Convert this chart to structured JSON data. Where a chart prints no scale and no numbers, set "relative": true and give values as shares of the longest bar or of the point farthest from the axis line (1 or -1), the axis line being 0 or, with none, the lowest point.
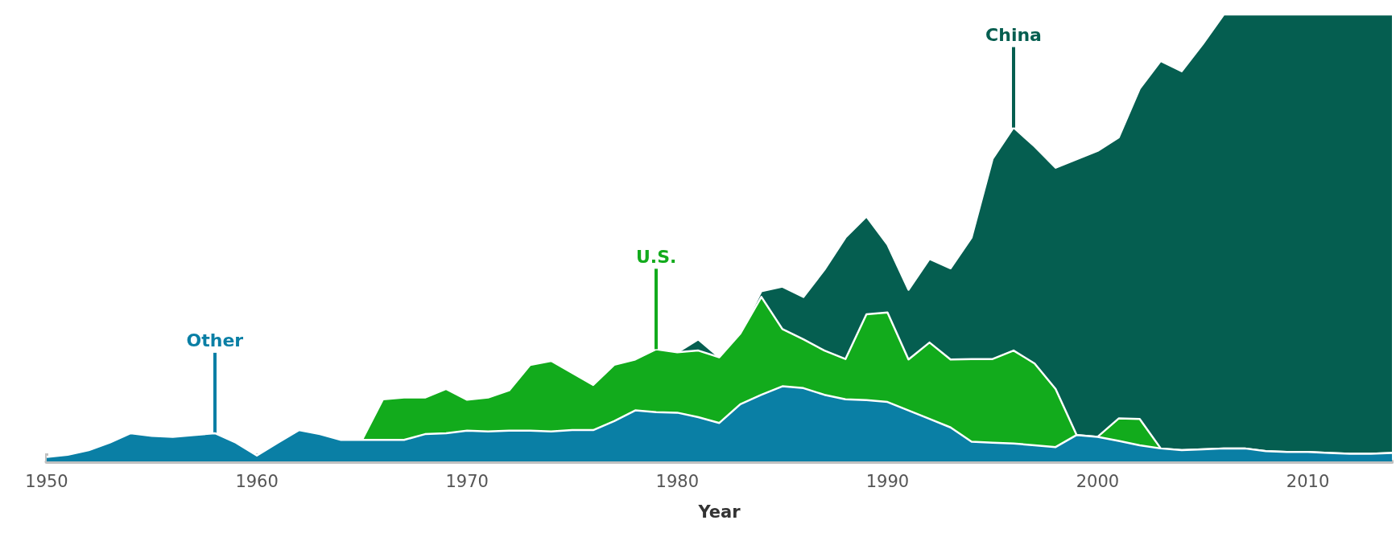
{
  "chart_data": {
    "type": "area",
    "stacked": true,
    "relative": true,
    "xlabel": "Year",
    "grid": false,
    "x": [
      1950,
      1951,
      1952,
      1953,
      1954,
      1955,
      1956,
      1957,
      1958,
      1959,
      1960,
      1961,
      1962,
      1963,
      1964,
      1965,
      1966,
      1967,
      1968,
      1969,
      1970,
      1971,
      1972,
      1973,
      1974,
      1975,
      1976,
      1977,
      1978,
      1979,
      1980,
      1981,
      1982,
      1983,
      1984,
      1985,
      1986,
      1987,
      1988,
      1989,
      1990,
      1991,
      1992,
      1993,
      1994,
      1995,
      1996,
      1997,
      1998,
      1999,
      2000,
      2001,
      2002,
      2003,
      2004,
      2005,
      2006,
      2007,
      2008,
      2009,
      2010,
      2011,
      2012,
      2013,
      2014
    ],
    "xlim": [
      1950,
      2014
    ],
    "xticks": [
      1950,
      1960,
      1970,
      1980,
      1990,
      2000,
      2010
    ],
    "series": [
      {
        "color": "#0a7fa5",
        "values": [
          0.01,
          0.015,
          0.025,
          0.042,
          0.063,
          0.057,
          0.055,
          0.059,
          0.063,
          0.042,
          0.013,
          0.042,
          0.07,
          0.061,
          0.048,
          0.048,
          0.048,
          0.048,
          0.061,
          0.063,
          0.069,
          0.067,
          0.069,
          0.069,
          0.067,
          0.07,
          0.07,
          0.09,
          0.114,
          0.11,
          0.109,
          0.099,
          0.086,
          0.128,
          0.149,
          0.168,
          0.164,
          0.149,
          0.139,
          0.137,
          0.133,
          0.114,
          0.095,
          0.076,
          0.044,
          0.042,
          0.04,
          0.036,
          0.032,
          0.059,
          0.055,
          0.046,
          0.036,
          0.029,
          0.025,
          0.027,
          0.029,
          0.029,
          0.023,
          0.021,
          0.021,
          0.019,
          0.017,
          0.017,
          0.019
        ]
      },
      {
        "color": "#12ab1c",
        "values": [
          0,
          0,
          0,
          0,
          0,
          0,
          0,
          0,
          0,
          0,
          0,
          0,
          0,
          0,
          0,
          0,
          0.091,
          0.095,
          0.082,
          0.099,
          0.069,
          0.076,
          0.09,
          0.147,
          0.158,
          0.128,
          0.101,
          0.126,
          0.114,
          0.141,
          0.135,
          0.149,
          0.147,
          0.158,
          0.219,
          0.128,
          0.109,
          0.099,
          0.09,
          0.192,
          0.2,
          0.114,
          0.171,
          0.152,
          0.185,
          0.187,
          0.208,
          0.183,
          0.13,
          0,
          0,
          0.05,
          0.059,
          0,
          0,
          0,
          0,
          0,
          0,
          0,
          0,
          0,
          0,
          0,
          0
        ]
      },
      {
        "color": "#055e50",
        "values": [
          0,
          0,
          0,
          0,
          0,
          0,
          0,
          0,
          0,
          0,
          0,
          0,
          0,
          0,
          0,
          0,
          0,
          0,
          0,
          0,
          0,
          0,
          0,
          0,
          0,
          0,
          0,
          0,
          0,
          0,
          0,
          0.025,
          0,
          0,
          0.013,
          0.095,
          0.095,
          0.181,
          0.272,
          0.219,
          0.152,
          0.156,
          0.187,
          0.204,
          0.272,
          0.448,
          0.499,
          0.486,
          0.495,
          0.617,
          0.64,
          0.629,
          0.739,
          0.867,
          0.848,
          0.907,
          0.971,
          0.971,
          0.977,
          0.979,
          0.979,
          0.981,
          0.983,
          0.983,
          0.981
        ]
      }
    ],
    "annotations": [
      {
        "text": "Other",
        "x": 1958,
        "y": 0.063
      },
      {
        "text": "U.S.",
        "x": 1979,
        "y": 0.251
      },
      {
        "text": "China",
        "x": 1996,
        "y": 0.747
      }
    ]
  }
}
